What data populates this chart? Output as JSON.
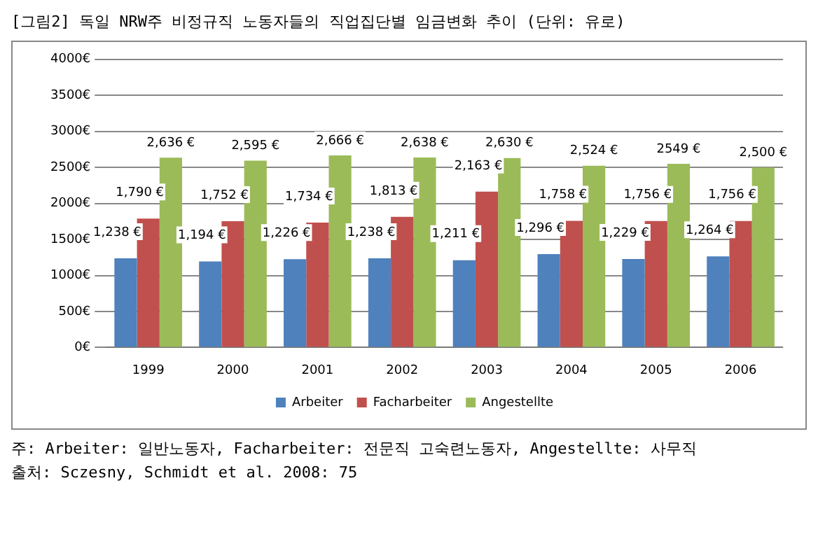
{
  "chart_data": {
    "type": "bar",
    "title": "[그림2] 독일 NRW주 비정규직 노동자들의 직업집단별 임금변화 추이 (단위: 유로)",
    "categories": [
      "1999",
      "2000",
      "2001",
      "2002",
      "2003",
      "2004",
      "2005",
      "2006"
    ],
    "series": [
      {
        "name": "Arbeiter",
        "color": "#4f81bd",
        "values": [
          1238,
          1194,
          1226,
          1238,
          1211,
          1296,
          1229,
          1264
        ],
        "value_labels": [
          "1,238 €",
          "1,194 €",
          "1,226 €",
          "1,238 €",
          "1,211 €",
          "1,296 €",
          "1,229 €",
          "1,264 €"
        ]
      },
      {
        "name": "Facharbeiter",
        "color": "#c0504d",
        "values": [
          1790,
          1752,
          1734,
          1813,
          2163,
          1758,
          1756,
          1756
        ],
        "value_labels": [
          "1,790 €",
          "1,752 €",
          "1,734 €",
          "1,813 €",
          "2,163 €",
          "1,758 €",
          "1,756 €",
          "1,756 €"
        ]
      },
      {
        "name": "Angestellte",
        "color": "#9bbb59",
        "values": [
          2636,
          2595,
          2666,
          2638,
          2630,
          2524,
          2549,
          2500
        ],
        "value_labels": [
          "2,636 €",
          "2,595 €",
          "2,666 €",
          "2,638 €",
          "2,630 €",
          "2,524 €",
          "2549 €",
          "2,500 €"
        ]
      }
    ],
    "ylim": [
      0,
      4000
    ],
    "yticks": [
      {
        "value": 0,
        "label": "0€"
      },
      {
        "value": 500,
        "label": "500€"
      },
      {
        "value": 1000,
        "label": "1000€"
      },
      {
        "value": 1500,
        "label": "1500€"
      },
      {
        "value": 2000,
        "label": "2000€"
      },
      {
        "value": 2500,
        "label": "2500€"
      },
      {
        "value": 3000,
        "label": "3000€"
      },
      {
        "value": 3500,
        "label": "3500€"
      },
      {
        "value": 4000,
        "label": "4000€"
      }
    ],
    "grid": "y",
    "legend": "bottom",
    "annotations": [
      "주: Arbeiter: 일반노동자, Facharbeiter: 전문직 고숙련노동자, Angestellte: 사무직",
      "출처: Sczesny, Schmidt et al. 2008: 75"
    ]
  }
}
